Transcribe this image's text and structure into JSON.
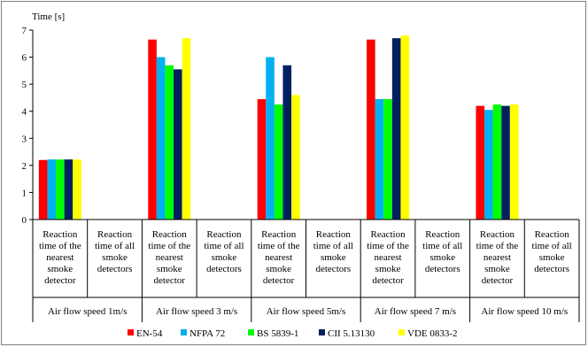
{
  "chart_data": {
    "type": "bar",
    "ylabel": "Time [s]",
    "ylim": [
      0,
      7
    ],
    "yticks": [
      0,
      1,
      2,
      3,
      4,
      5,
      6,
      7
    ],
    "grid": false,
    "legend_position": "bottom",
    "groups": [
      "Air flow speed 1m/s",
      "Air flow speed 3 m/s",
      "Air flow speed 5m/s",
      "Air flow speed 7 m/s",
      "Air flow speed 10 m/s"
    ],
    "categories": [
      "Reaction time of the nearest smoke detector",
      "Reaction time of all smoke detectors"
    ],
    "category_lines": [
      [
        "Reaction",
        "time of the",
        "nearest",
        "smoke",
        "detector"
      ],
      [
        "Reaction",
        "time of all",
        "smoke",
        "detectors"
      ]
    ],
    "series": [
      {
        "name": "EN-54",
        "color": "#ff0000",
        "values": [
          [
            2.2,
            null
          ],
          [
            6.65,
            null
          ],
          [
            4.45,
            null
          ],
          [
            6.65,
            null
          ],
          [
            4.2,
            null
          ]
        ]
      },
      {
        "name": "NFPA 72",
        "color": "#00b0f0",
        "values": [
          [
            2.22,
            null
          ],
          [
            6.0,
            null
          ],
          [
            6.0,
            null
          ],
          [
            4.45,
            null
          ],
          [
            4.05,
            null
          ]
        ]
      },
      {
        "name": "BS 5839-1",
        "color": "#00ff00",
        "values": [
          [
            2.22,
            null
          ],
          [
            5.7,
            null
          ],
          [
            4.25,
            null
          ],
          [
            4.45,
            null
          ],
          [
            4.25,
            null
          ]
        ]
      },
      {
        "name": "CII 5.13130",
        "color": "#002060",
        "values": [
          [
            2.22,
            null
          ],
          [
            5.55,
            null
          ],
          [
            5.7,
            null
          ],
          [
            6.7,
            null
          ],
          [
            4.2,
            null
          ]
        ]
      },
      {
        "name": "VDE 0833-2",
        "color": "#ffff00",
        "values": [
          [
            2.22,
            null
          ],
          [
            6.7,
            null
          ],
          [
            4.6,
            null
          ],
          [
            6.8,
            null
          ],
          [
            4.25,
            null
          ]
        ]
      }
    ]
  }
}
